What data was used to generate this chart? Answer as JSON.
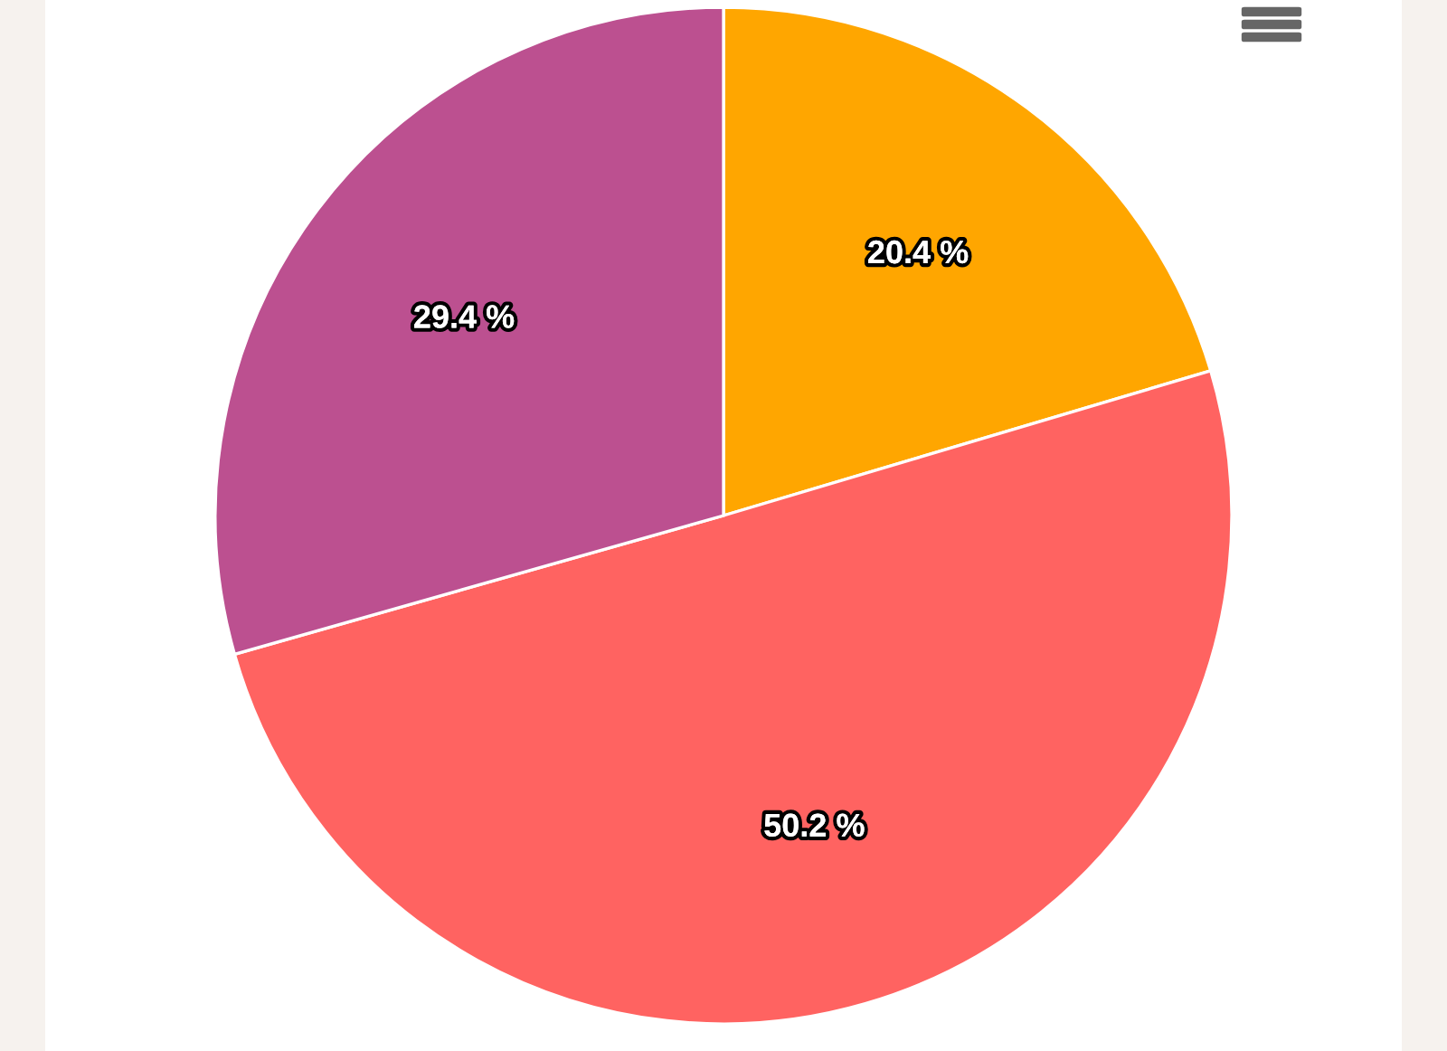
{
  "chart_data": {
    "type": "pie",
    "categories": [
      null,
      null,
      null
    ],
    "values": [
      20.4,
      50.2,
      29.4
    ],
    "colors": [
      "#ffa600",
      "#ff6361",
      "#bc5090"
    ],
    "value_labels": [
      "20.4 %",
      "50.2 %",
      "29.4 %"
    ],
    "legend": false
  }
}
